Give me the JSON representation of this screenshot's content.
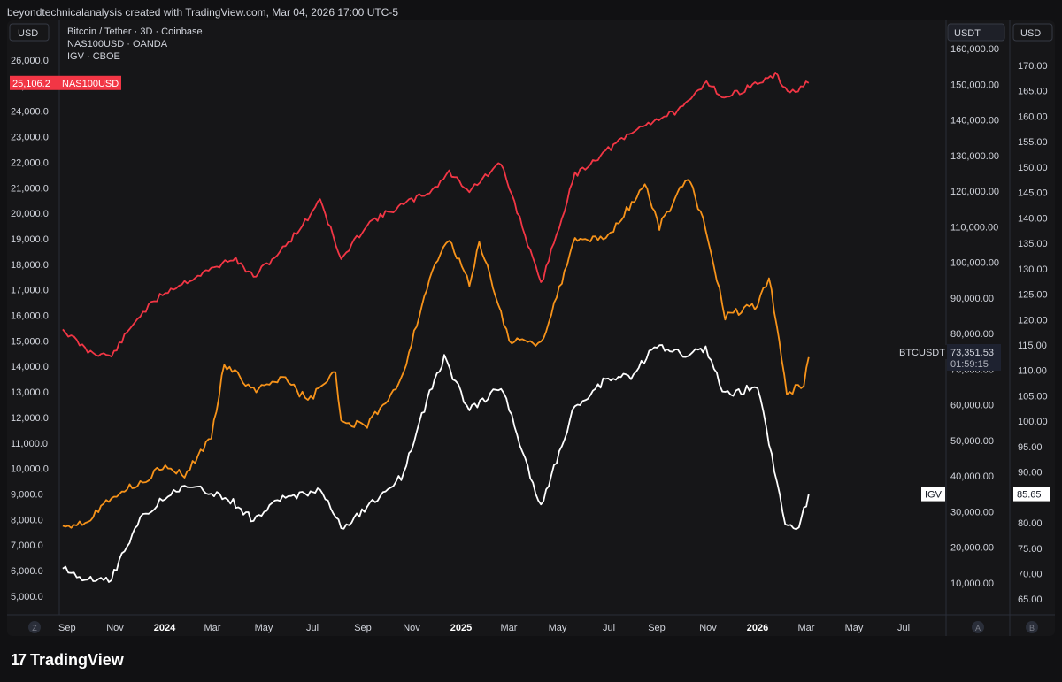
{
  "header": {
    "attribution": "beyondtechnicalanalysis created with TradingView.com, Mar 04, 2026 17:00 UTC-5"
  },
  "legend": {
    "lines": [
      "Bitcoin / Tether · 3D · Coinbase",
      "NAS100USD · OANDA",
      "IGV · CBOE"
    ]
  },
  "axis_headers": {
    "left": "USD",
    "mid": "USDT",
    "right": "USD"
  },
  "axis_buttons": {
    "z": "Z",
    "a": "A",
    "b": "B"
  },
  "footer": {
    "brand": "TradingView"
  },
  "colors": {
    "nas": "#f23645",
    "btc": "#f7931a",
    "igv": "#ffffff",
    "background": "#161618"
  },
  "chart_data": {
    "type": "line",
    "x_labels": [
      "Sep",
      "Nov",
      "2024",
      "Mar",
      "May",
      "Jul",
      "Sep",
      "Nov",
      "2025",
      "Mar",
      "May",
      "Jul",
      "Sep",
      "Nov",
      "2026",
      "Mar",
      "May",
      "Jul"
    ],
    "bold_x_labels": [
      "2024",
      "2025",
      "2026"
    ],
    "left_axis": {
      "unit": "USD",
      "ticks": [
        "26,000.0",
        "25,000.0",
        "24,000.0",
        "23,000.0",
        "22,000.0",
        "21,000.0",
        "20,000.0",
        "19,000.0",
        "18,000.0",
        "17,000.0",
        "16,000.0",
        "15,000.0",
        "14,000.0",
        "13,000.0",
        "12,000.0",
        "11,000.0",
        "10,000.0",
        "9,000.0",
        "8,000.0",
        "7,000.0",
        "6,000.0",
        "5,000.0"
      ]
    },
    "mid_axis": {
      "unit": "USDT",
      "ticks": [
        "160,000.00",
        "150,000.00",
        "140,000.00",
        "130,000.00",
        "120,000.00",
        "110,000.00",
        "100,000.00",
        "90,000.00",
        "80,000.00",
        "70,000.00",
        "60,000.00",
        "50,000.00",
        "40,000.00",
        "30,000.00",
        "20,000.00",
        "10,000.00"
      ]
    },
    "right_axis": {
      "unit": "USD",
      "ticks": [
        "170.00",
        "165.00",
        "160.00",
        "155.00",
        "150.00",
        "145.00",
        "140.00",
        "135.00",
        "130.00",
        "125.00",
        "120.00",
        "115.00",
        "110.00",
        "105.00",
        "100.00",
        "95.00",
        "90.00",
        "85.00",
        "80.00",
        "75.00",
        "70.00",
        "65.00"
      ]
    },
    "series": [
      {
        "name": "NAS100USD",
        "axis": "left",
        "x": [
          "2023-08-28",
          "2023-09-28",
          "2023-10-27",
          "2023-11-28",
          "2023-12-29",
          "2024-01-25",
          "2024-02-27",
          "2024-03-25",
          "2024-04-19",
          "2024-05-25",
          "2024-06-25",
          "2024-07-10",
          "2024-08-05",
          "2024-09-06",
          "2024-10-18",
          "2024-11-25",
          "2024-12-16",
          "2025-01-10",
          "2025-02-18",
          "2025-03-13",
          "2025-04-08",
          "2025-05-20",
          "2025-06-30",
          "2025-08-15",
          "2025-09-30",
          "2025-10-29",
          "2025-11-20",
          "2025-12-31",
          "2026-01-22",
          "2026-02-09",
          "2026-03-04"
        ],
        "values": [
          15450,
          14600,
          14400,
          15900,
          16850,
          17300,
          17800,
          18250,
          17500,
          18600,
          19800,
          20600,
          18150,
          19600,
          20300,
          20900,
          21600,
          20900,
          21950,
          19800,
          17200,
          21500,
          22500,
          23500,
          24100,
          25200,
          24500,
          25100,
          25400,
          24700,
          25106.2
        ],
        "last_value_label": "25,106.2"
      },
      {
        "name": "BTCUSDT",
        "axis": "mid",
        "x": [
          "2023-08-28",
          "2023-09-28",
          "2023-10-27",
          "2023-11-28",
          "2023-12-29",
          "2024-01-25",
          "2024-02-27",
          "2024-03-14",
          "2024-04-19",
          "2024-05-25",
          "2024-06-25",
          "2024-07-29",
          "2024-08-05",
          "2024-09-06",
          "2024-10-18",
          "2024-11-25",
          "2024-12-16",
          "2025-01-10",
          "2025-01-22",
          "2025-02-28",
          "2025-04-08",
          "2025-05-20",
          "2025-06-30",
          "2025-08-14",
          "2025-09-01",
          "2025-10-06",
          "2025-10-28",
          "2025-11-21",
          "2025-12-31",
          "2026-01-14",
          "2026-02-05",
          "2026-02-26",
          "2026-03-04"
        ],
        "values": [
          26000,
          27500,
          34500,
          37500,
          42500,
          40000,
          51000,
          71500,
          64000,
          68000,
          61000,
          69000,
          55000,
          54000,
          67000,
          98000,
          106000,
          94000,
          106000,
          78000,
          77000,
          106000,
          107000,
          122000,
          110000,
          124000,
          110000,
          85000,
          88000,
          96000,
          63000,
          66000,
          73351.53
        ],
        "last_value_label": "73,351.53",
        "countdown": "01:59:15"
      },
      {
        "name": "IGV",
        "axis": "right",
        "x": [
          "2023-08-28",
          "2023-09-28",
          "2023-10-27",
          "2023-11-28",
          "2023-12-29",
          "2024-01-25",
          "2024-02-27",
          "2024-03-25",
          "2024-04-19",
          "2024-05-25",
          "2024-06-25",
          "2024-07-10",
          "2024-08-05",
          "2024-09-06",
          "2024-10-18",
          "2024-11-25",
          "2024-12-10",
          "2025-01-10",
          "2025-02-18",
          "2025-03-13",
          "2025-04-08",
          "2025-05-20",
          "2025-06-30",
          "2025-07-28",
          "2025-08-29",
          "2025-09-30",
          "2025-10-28",
          "2025-11-21",
          "2025-12-31",
          "2026-01-14",
          "2026-02-03",
          "2026-02-20",
          "2026-03-04"
        ],
        "values": [
          71,
          69,
          69,
          80,
          85,
          87,
          86,
          84,
          80.5,
          85,
          86,
          87,
          79,
          83,
          89,
          107,
          112.5,
          102,
          107,
          96,
          83,
          103,
          108.5,
          109,
          115,
          113,
          114,
          105,
          107,
          96,
          80,
          79,
          85.65
        ],
        "last_value_label": "85.65"
      }
    ]
  }
}
